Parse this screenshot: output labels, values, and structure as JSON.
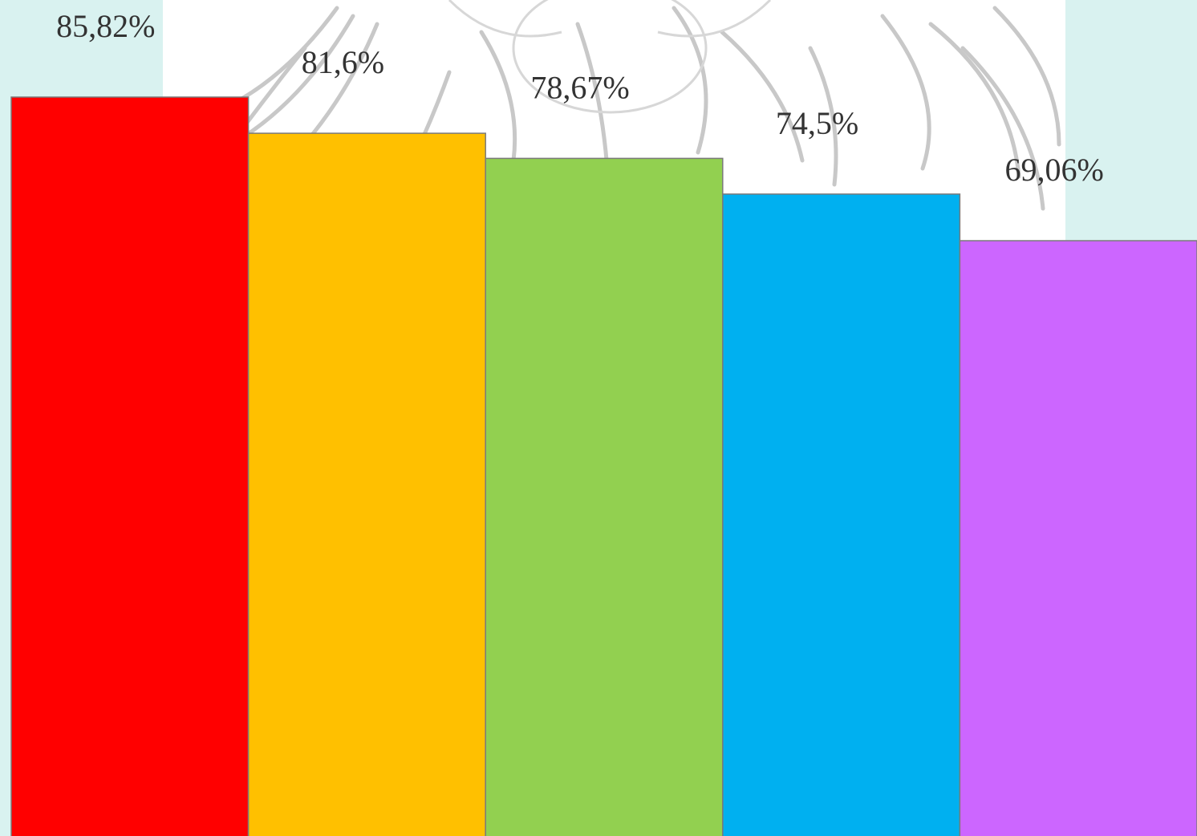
{
  "chart_data": {
    "type": "bar",
    "categories": [
      "",
      "",
      "",
      "",
      ""
    ],
    "values": [
      85.82,
      81.6,
      78.67,
      74.5,
      69.06
    ],
    "data_labels": [
      "85,82%",
      "81,6%",
      "78,67%",
      "74,5%",
      "69,06%"
    ],
    "colors": [
      "#ff0000",
      "#ffc000",
      "#92d050",
      "#00b0f0",
      "#cc66ff"
    ],
    "title": "",
    "xlabel": "",
    "ylabel": "",
    "axes_visible": false,
    "grid": false,
    "legend": "none",
    "background_color": "#d9f2f0",
    "watermark": "double-headed-eagle-emblem"
  }
}
